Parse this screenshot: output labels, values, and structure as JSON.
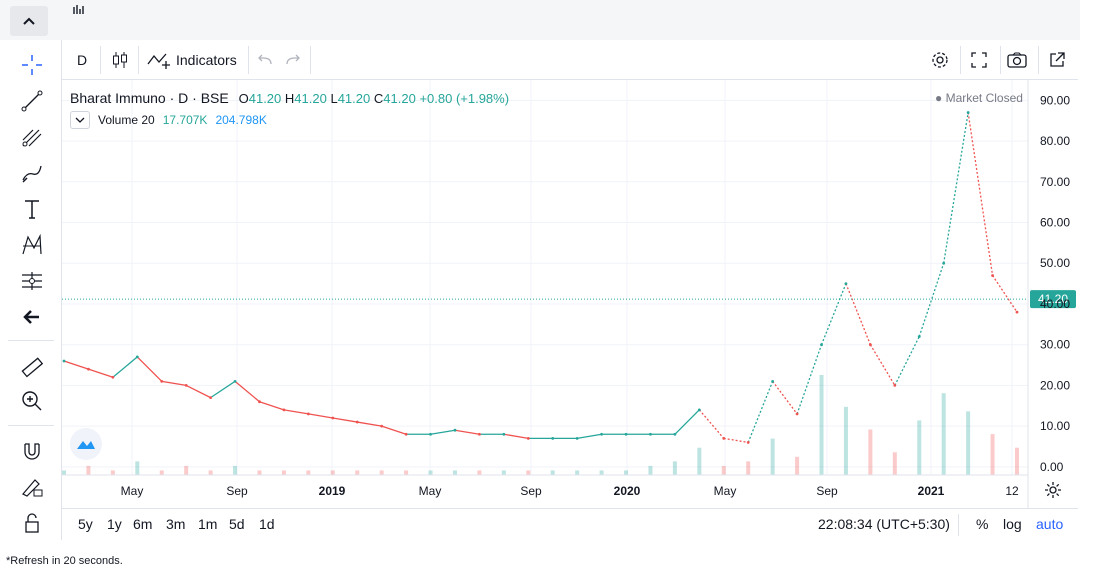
{
  "top": {
    "collapse_icon": "chevron-up-icon",
    "chart_icon": "bar-chart-icon"
  },
  "left_toolbar": {
    "tools": [
      "crosshair-icon",
      "trend-line-icon",
      "pitchfork-icon",
      "brush-icon",
      "text-icon",
      "pattern-icon",
      "measure-icon",
      "back-arrow-icon",
      "ruler-icon",
      "zoom-in-icon",
      "magnet-icon",
      "lock-draw-icon",
      "lock-icon"
    ]
  },
  "toolbar": {
    "interval": "D",
    "indicators_label": "Indicators"
  },
  "legend": {
    "symbol": "Bharat Immuno · D · BSE",
    "open_label": "O",
    "open": "41.20",
    "high_label": "H",
    "high": "41.20",
    "low_label": "L",
    "low": "41.20",
    "close_label": "C",
    "close": "41.20",
    "change": "+0.80 (+1.98%)",
    "volume_label": "Volume 20",
    "volume_value": "17.707K",
    "volume_ma": "204.798K",
    "market_status": "Market Closed"
  },
  "bottom": {
    "ranges": [
      "5y",
      "1y",
      "6m",
      "3m",
      "1m",
      "5d",
      "1d"
    ],
    "clock": "22:08:34 (UTC+5:30)",
    "percent": "%",
    "log": "log",
    "auto": "auto"
  },
  "footnote": "*Refresh in 20 seconds.",
  "colors": {
    "up": "#26a69a",
    "down": "#ef5350",
    "accent": "#2962ff"
  },
  "chart_data": {
    "type": "line",
    "title": "Bharat Immuno · D · BSE",
    "xlabel": "",
    "ylabel": "",
    "x_tick_labels": [
      "May",
      "Sep",
      "2019",
      "May",
      "Sep",
      "2020",
      "May",
      "Sep",
      "2021",
      "12"
    ],
    "y_tick_labels": [
      "0.00",
      "10.00",
      "20.00",
      "30.00",
      "40.00",
      "50.00",
      "60.00",
      "70.00",
      "80.00",
      "90.00"
    ],
    "ylim": [
      -2,
      95
    ],
    "last_price": 41.2,
    "last_price_label": "41.20",
    "series": [
      {
        "x": [
          "2018-01",
          "2018-02",
          "2018-03",
          "2018-04",
          "2018-05",
          "2018-06",
          "2018-07",
          "2018-08",
          "2018-09",
          "2018-10",
          "2018-11",
          "2018-12",
          "2019-01",
          "2019-02",
          "2019-03",
          "2019-04",
          "2019-05",
          "2019-06",
          "2019-07",
          "2019-08",
          "2019-09",
          "2019-10",
          "2019-11",
          "2019-12",
          "2020-01",
          "2020-02",
          "2020-03",
          "2020-04",
          "2020-05",
          "2020-06",
          "2020-07",
          "2020-08",
          "2020-09",
          "2020-10",
          "2020-11",
          "2020-12",
          "2021-01",
          "2021-02",
          "2021-03",
          "2021-04"
        ],
        "values": [
          26,
          24,
          22,
          27,
          21,
          20,
          17,
          21,
          16,
          14,
          13,
          12,
          11,
          10,
          8,
          8,
          9,
          8,
          8,
          7,
          7,
          7,
          8,
          8,
          8,
          8,
          14,
          7,
          6,
          21,
          13,
          30,
          45,
          30,
          20,
          32,
          50,
          87,
          47,
          38
        ]
      }
    ],
    "volume": [
      1,
      2,
      1,
      3,
      1,
      2,
      1,
      2,
      1,
      1,
      1,
      1,
      1,
      1,
      1,
      1,
      1,
      1,
      1,
      1,
      1,
      1,
      1,
      1,
      2,
      3,
      6,
      2,
      3,
      8,
      4,
      22,
      15,
      10,
      5,
      12,
      18,
      14,
      9,
      6
    ]
  }
}
